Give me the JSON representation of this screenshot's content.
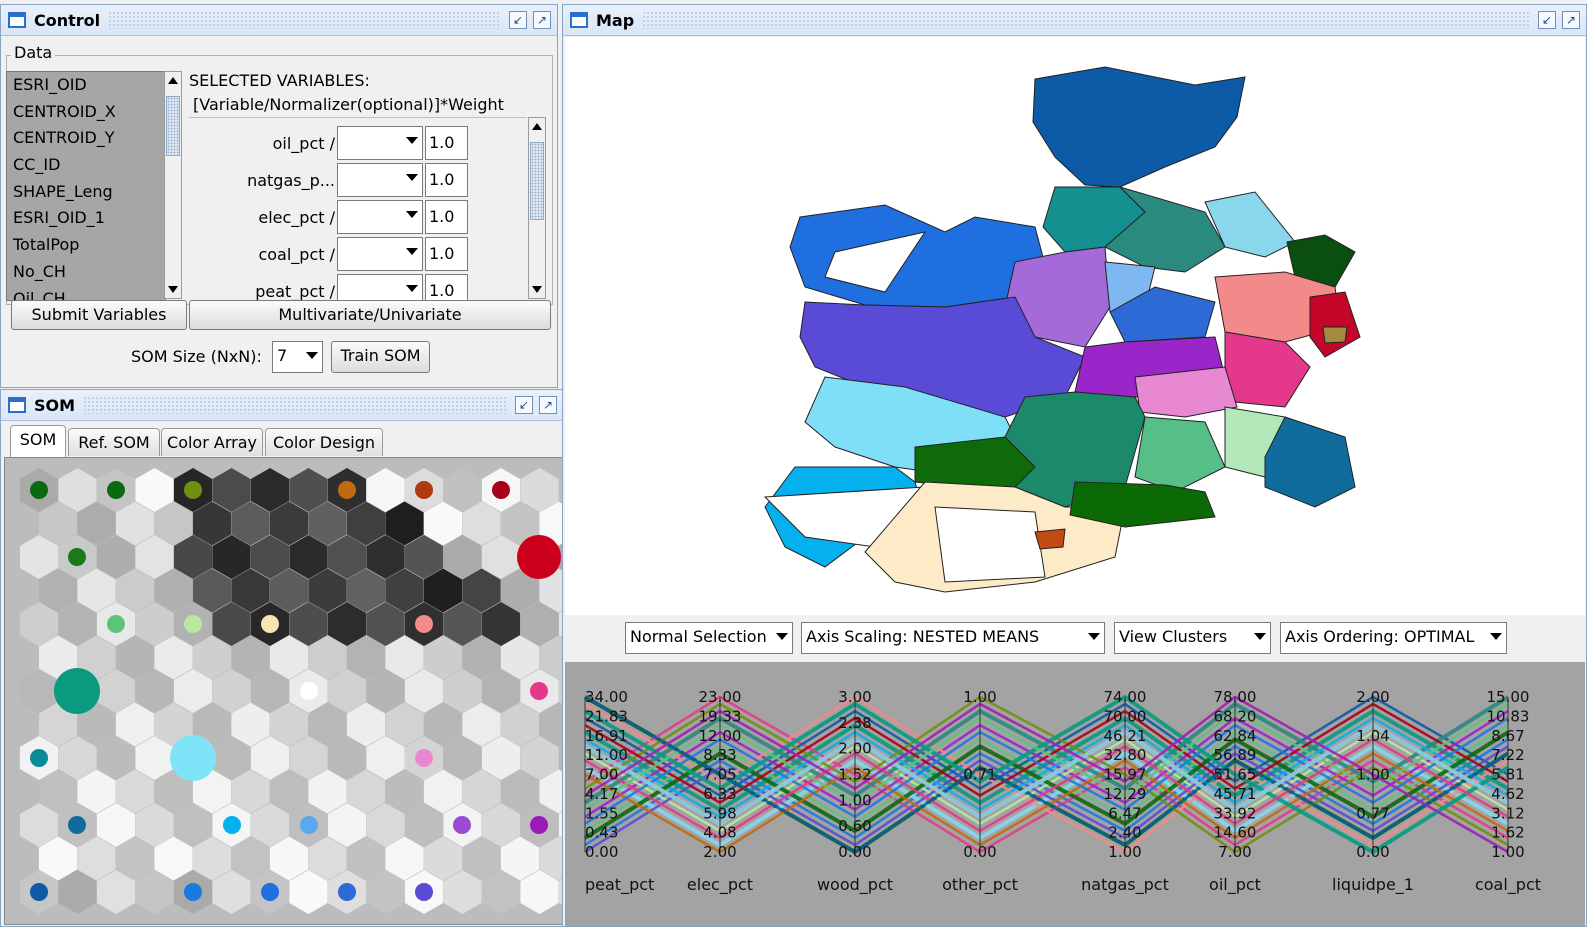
{
  "control": {
    "title": "Control",
    "group_label": "Data",
    "variables": [
      "ESRI_OID",
      "CENTROID_X",
      "CENTROID_Y",
      "CC_ID",
      "SHAPE_Leng",
      "ESRI_OID_1",
      "TotalPop",
      "No_CH",
      "Oil_CH"
    ],
    "selected_header": "SELECTED VARIABLES:",
    "selected_formula": "[Variable/Normalizer(optional)]*Weight",
    "selected": [
      {
        "name": "oil_pct /",
        "weight": "1.0"
      },
      {
        "name": "natgas_p...",
        "weight": "1.0"
      },
      {
        "name": "elec_pct /",
        "weight": "1.0"
      },
      {
        "name": "coal_pct /",
        "weight": "1.0"
      },
      {
        "name": "peat_pct /",
        "weight": "1.0"
      }
    ],
    "submit_label": "Submit Variables",
    "mode_label": "Multivariate/Univariate",
    "som_size_label": "SOM Size (NxN):",
    "som_size_value": "7",
    "train_label": "Train SOM"
  },
  "som": {
    "title": "SOM",
    "tabs": [
      "SOM",
      "Ref. SOM",
      "Color Array",
      "Color Design"
    ],
    "active_tab": "SOM"
  },
  "map": {
    "title": "Map"
  },
  "pcp_toolbar": {
    "selection": "Normal Selection",
    "scaling": "Axis Scaling: NESTED MEANS",
    "clusters": "View Clusters",
    "ordering": "Axis Ordering: OPTIMAL"
  },
  "chart_data": {
    "type": "line",
    "axes": [
      {
        "name": "peat_pct",
        "ticks": [
          "34.00",
          "21.83",
          "16.91",
          "11.00",
          "7.00",
          "4.17",
          "1.55",
          "0.43",
          "0.00"
        ]
      },
      {
        "name": "elec_pct",
        "ticks": [
          "23.00",
          "19.33",
          "12.00",
          "8.33",
          "7.05",
          "6.33",
          "5.98",
          "4.08",
          "2.00"
        ]
      },
      {
        "name": "wood_pct",
        "ticks": [
          "3.00",
          "2.38",
          "2.00",
          "1.52",
          "1.00",
          "0.60",
          "0.00"
        ]
      },
      {
        "name": "other_pct",
        "ticks": [
          "1.00",
          "0.71",
          "0.00"
        ]
      },
      {
        "name": "natgas_pct",
        "ticks": [
          "74.00",
          "70.00",
          "46.21",
          "32.80",
          "15.97",
          "12.29",
          "6.47",
          "2.40",
          "1.00"
        ]
      },
      {
        "name": "oil_pct",
        "ticks": [
          "78.00",
          "68.20",
          "62.84",
          "56.89",
          "51.65",
          "45.71",
          "33.92",
          "14.60",
          "7.00"
        ]
      },
      {
        "name": "liquidpe_1",
        "ticks": [
          "2.00",
          "1.04",
          "1.00",
          "0.77",
          "0.00"
        ]
      },
      {
        "name": "coal_pct",
        "ticks": [
          "15.00",
          "10.83",
          "8.67",
          "7.22",
          "5.81",
          "4.62",
          "3.12",
          "1.62",
          "1.00"
        ]
      }
    ]
  },
  "colors": {
    "titlebar": "#d9e6f7",
    "pcp_bg": "#a3a3a3",
    "som_bg": "#bcbcbc"
  }
}
